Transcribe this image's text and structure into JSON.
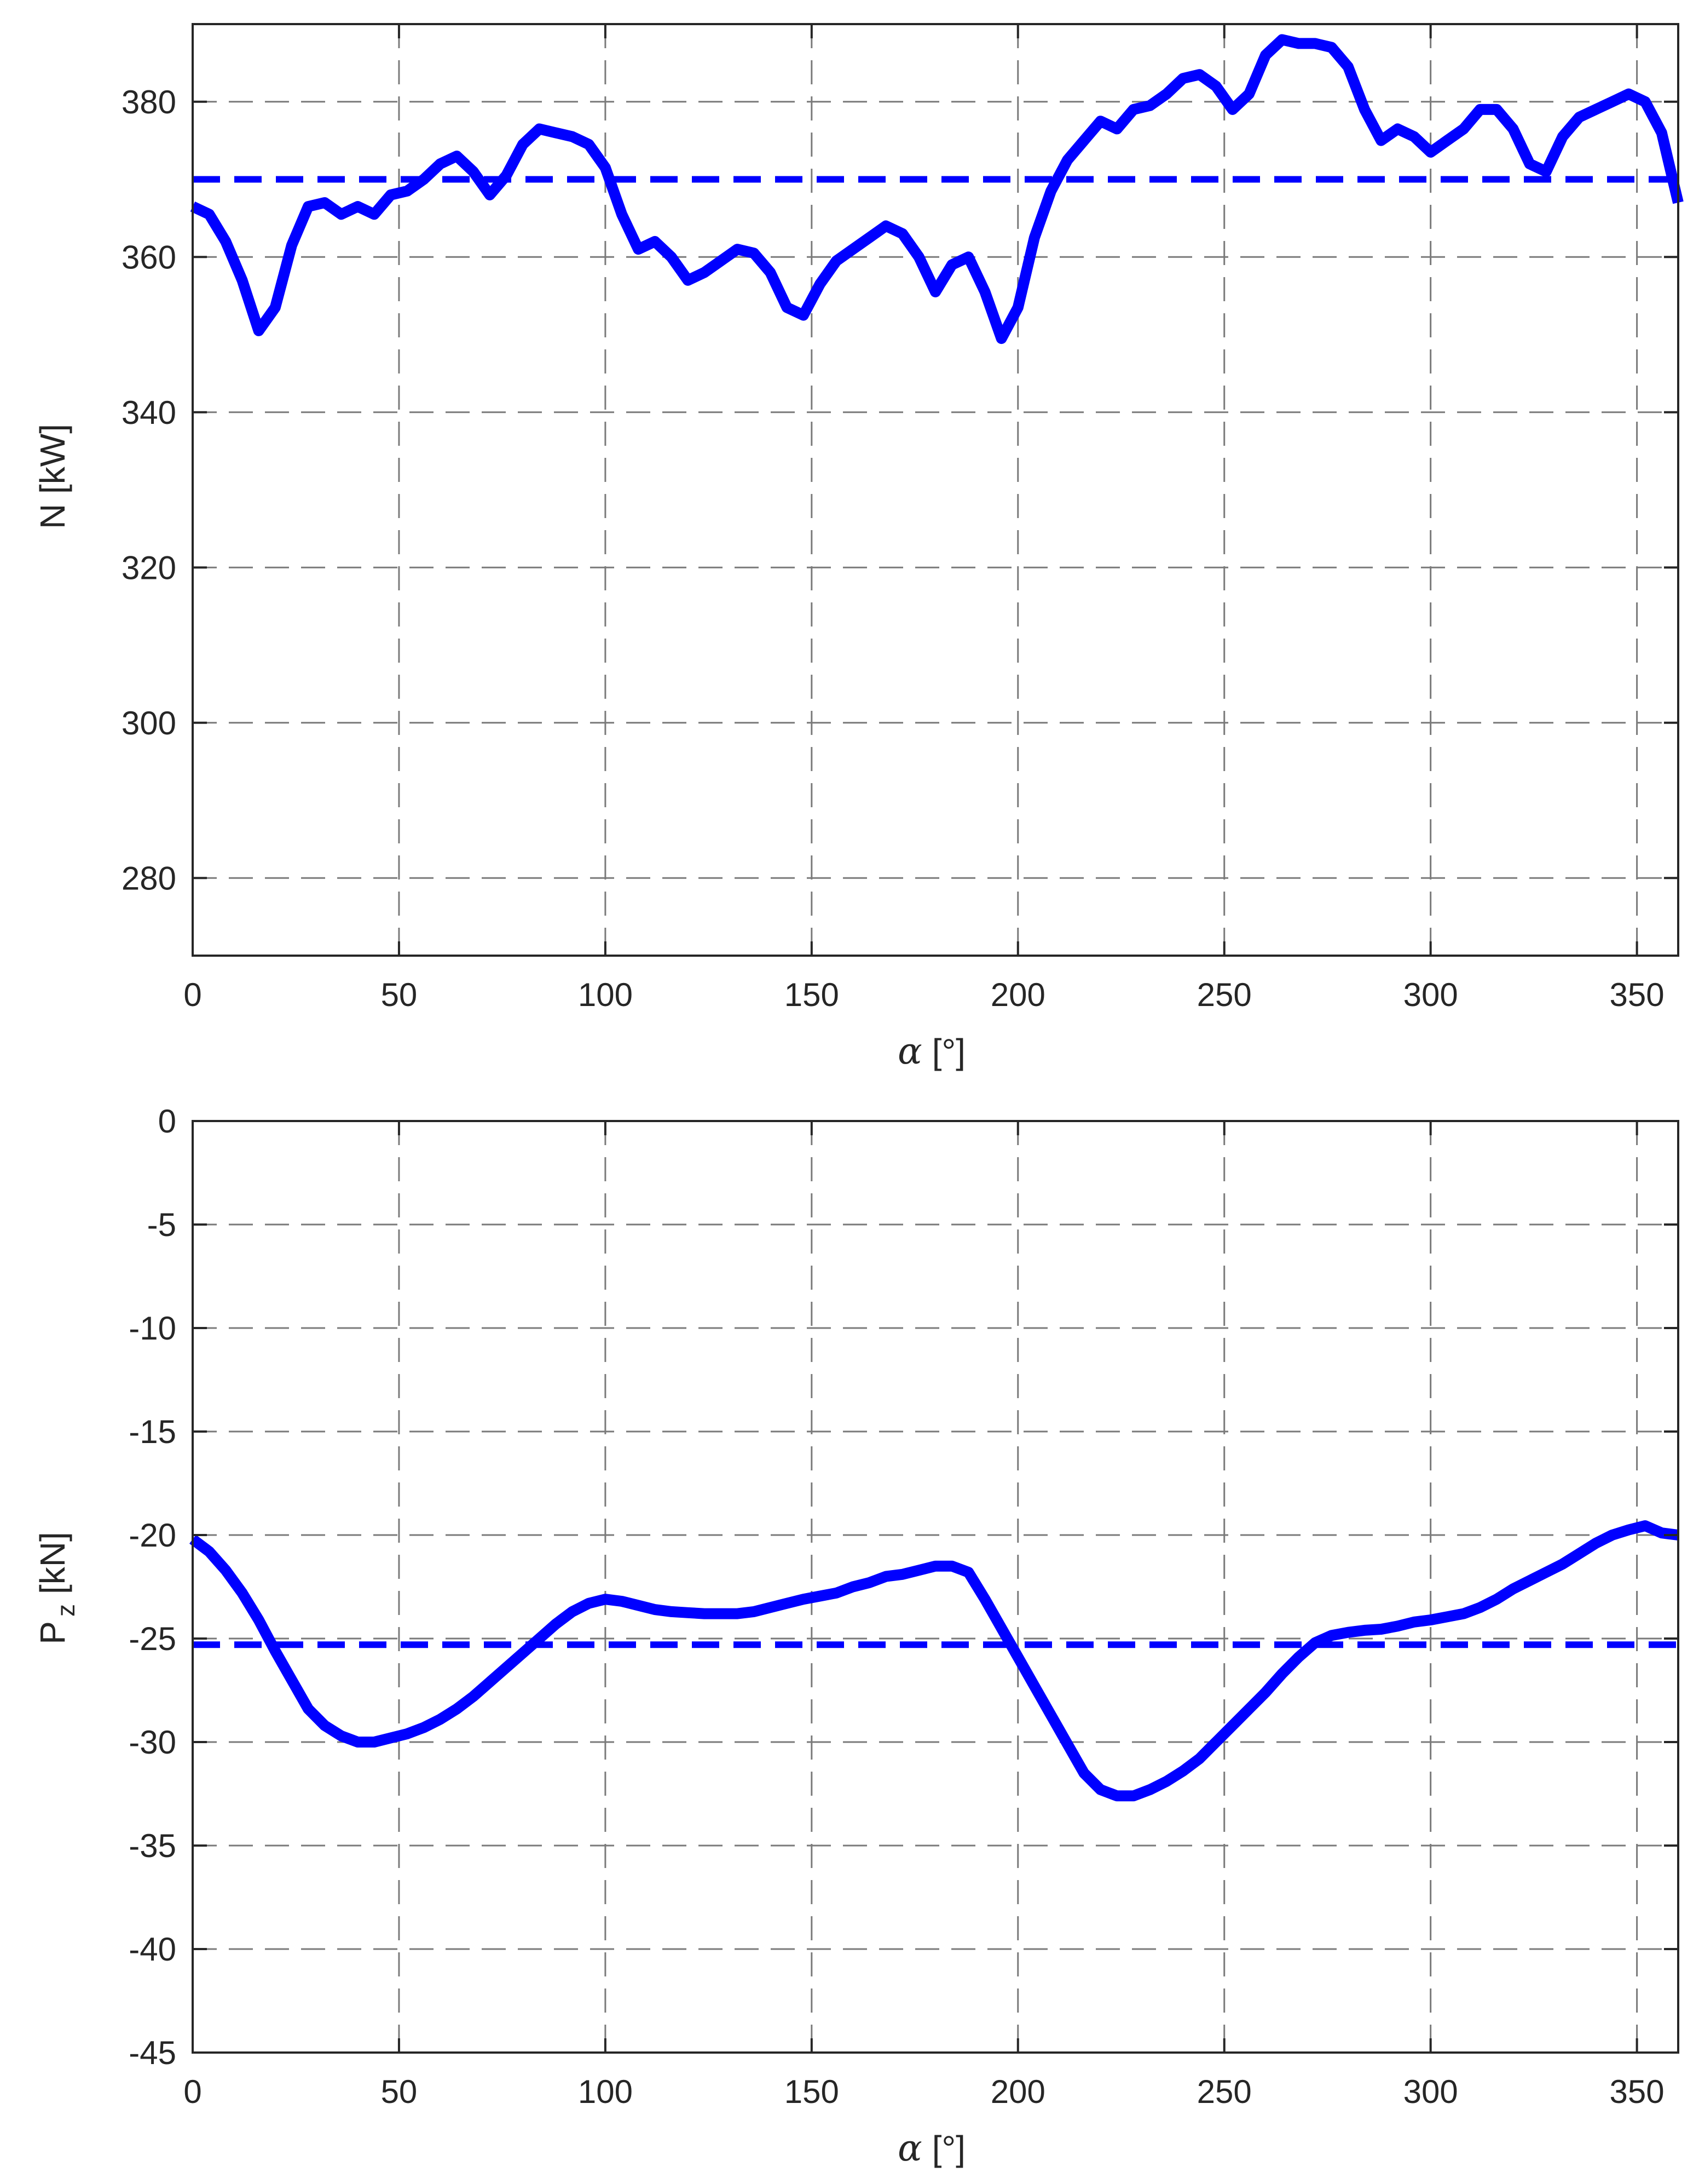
{
  "chart_data": [
    {
      "type": "line",
      "xlabel_symbol": "α",
      "xlabel_unit": "[°]",
      "ylabel": "N [kW]",
      "xlim": [
        0,
        360
      ],
      "ylim": [
        270,
        390
      ],
      "xticks": [
        0,
        50,
        100,
        150,
        200,
        250,
        300,
        350
      ],
      "yticks": [
        280,
        300,
        320,
        340,
        360,
        380
      ],
      "grid": true,
      "line_color": "#0000FF",
      "series": [
        {
          "x": [
            0,
            4,
            8,
            12,
            16,
            20,
            24,
            28,
            32,
            36,
            40,
            44,
            48,
            52,
            56,
            60,
            64,
            68,
            72,
            76,
            80,
            84,
            88,
            92,
            96,
            100,
            104,
            108,
            112,
            116,
            120,
            124,
            128,
            132,
            136,
            140,
            144,
            148,
            152,
            156,
            160,
            164,
            168,
            172,
            176,
            180,
            184,
            188,
            192,
            196,
            200,
            204,
            208,
            212,
            216,
            220,
            224,
            228,
            232,
            236,
            240,
            244,
            248,
            252,
            256,
            260,
            264,
            268,
            272,
            276,
            280,
            284,
            288,
            292,
            296,
            300,
            304,
            308,
            312,
            316,
            320,
            324,
            328,
            332,
            336,
            340,
            344,
            348,
            352,
            356,
            360
          ],
          "y": [
            366.5,
            365.5,
            362,
            357,
            350.5,
            353.5,
            361.5,
            366.5,
            367,
            365.5,
            366.5,
            365.5,
            368,
            368.5,
            370,
            372,
            373,
            371,
            368,
            370.5,
            374.5,
            376.5,
            376,
            375.5,
            374.5,
            371.5,
            365.5,
            361,
            362,
            360,
            357,
            358,
            359.5,
            361,
            360.5,
            358,
            353.5,
            352.5,
            356.5,
            359.5,
            361,
            362.5,
            364,
            363,
            360,
            355.5,
            359,
            360,
            355.5,
            349.5,
            353.5,
            362.5,
            368.5,
            372.5,
            375,
            377.5,
            376.5,
            379,
            379.5,
            381,
            383,
            383.5,
            382,
            379,
            381,
            386,
            388,
            387.5,
            387.5,
            387,
            384.5,
            379,
            375,
            376.5,
            375.5,
            373.5,
            375,
            376.5,
            379,
            379,
            376.5,
            372,
            371,
            375.5,
            378,
            379,
            380,
            381,
            380,
            376,
            367
          ]
        },
        {
          "x": [
            0,
            360
          ],
          "y": [
            370,
            370
          ]
        }
      ]
    },
    {
      "type": "line",
      "xlabel_symbol": "α",
      "xlabel_unit": "[°]",
      "ylabel_main": "P",
      "ylabel_sub": "z",
      "ylabel_unit": "[kN]",
      "xlim": [
        0,
        360
      ],
      "ylim": [
        -45,
        0
      ],
      "xticks": [
        0,
        50,
        100,
        150,
        200,
        250,
        300,
        350
      ],
      "yticks": [
        0,
        -5,
        -10,
        -15,
        -20,
        -25,
        -30,
        -35,
        -40,
        -45
      ],
      "grid": true,
      "line_color": "#0000FF",
      "series": [
        {
          "x": [
            0,
            4,
            8,
            12,
            16,
            20,
            24,
            28,
            32,
            36,
            40,
            44,
            48,
            52,
            56,
            60,
            64,
            68,
            72,
            76,
            80,
            84,
            88,
            92,
            96,
            100,
            104,
            108,
            112,
            116,
            120,
            124,
            128,
            132,
            136,
            140,
            144,
            148,
            152,
            156,
            160,
            164,
            168,
            172,
            176,
            180,
            184,
            188,
            192,
            196,
            200,
            204,
            208,
            212,
            216,
            220,
            224,
            228,
            232,
            236,
            240,
            244,
            248,
            252,
            256,
            260,
            264,
            268,
            272,
            276,
            280,
            284,
            288,
            292,
            296,
            300,
            304,
            308,
            312,
            316,
            320,
            324,
            328,
            332,
            336,
            340,
            344,
            348,
            352,
            356,
            360
          ],
          "y": [
            -20.2,
            -20.8,
            -21.7,
            -22.8,
            -24.1,
            -25.6,
            -27.0,
            -28.4,
            -29.2,
            -29.7,
            -30.0,
            -30.0,
            -29.8,
            -29.6,
            -29.3,
            -28.9,
            -28.4,
            -27.8,
            -27.1,
            -26.4,
            -25.7,
            -25.0,
            -24.3,
            -23.7,
            -23.3,
            -23.1,
            -23.2,
            -23.4,
            -23.6,
            -23.7,
            -23.75,
            -23.8,
            -23.8,
            -23.8,
            -23.7,
            -23.5,
            -23.3,
            -23.1,
            -22.95,
            -22.8,
            -22.5,
            -22.3,
            -22.0,
            -21.9,
            -21.7,
            -21.5,
            -21.5,
            -21.8,
            -23.1,
            -24.5,
            -25.9,
            -27.3,
            -28.7,
            -30.1,
            -31.5,
            -32.3,
            -32.6,
            -32.6,
            -32.3,
            -31.9,
            -31.4,
            -30.8,
            -30.0,
            -29.2,
            -28.4,
            -27.6,
            -26.7,
            -25.9,
            -25.2,
            -24.85,
            -24.7,
            -24.6,
            -24.55,
            -24.4,
            -24.2,
            -24.1,
            -23.95,
            -23.8,
            -23.5,
            -23.1,
            -22.6,
            -22.2,
            -21.8,
            -21.4,
            -20.9,
            -20.4,
            -20.0,
            -19.75,
            -19.55,
            -19.9,
            -20.0
          ]
        },
        {
          "x": [
            0,
            360
          ],
          "y": [
            -25.3,
            -25.3
          ]
        }
      ]
    }
  ]
}
